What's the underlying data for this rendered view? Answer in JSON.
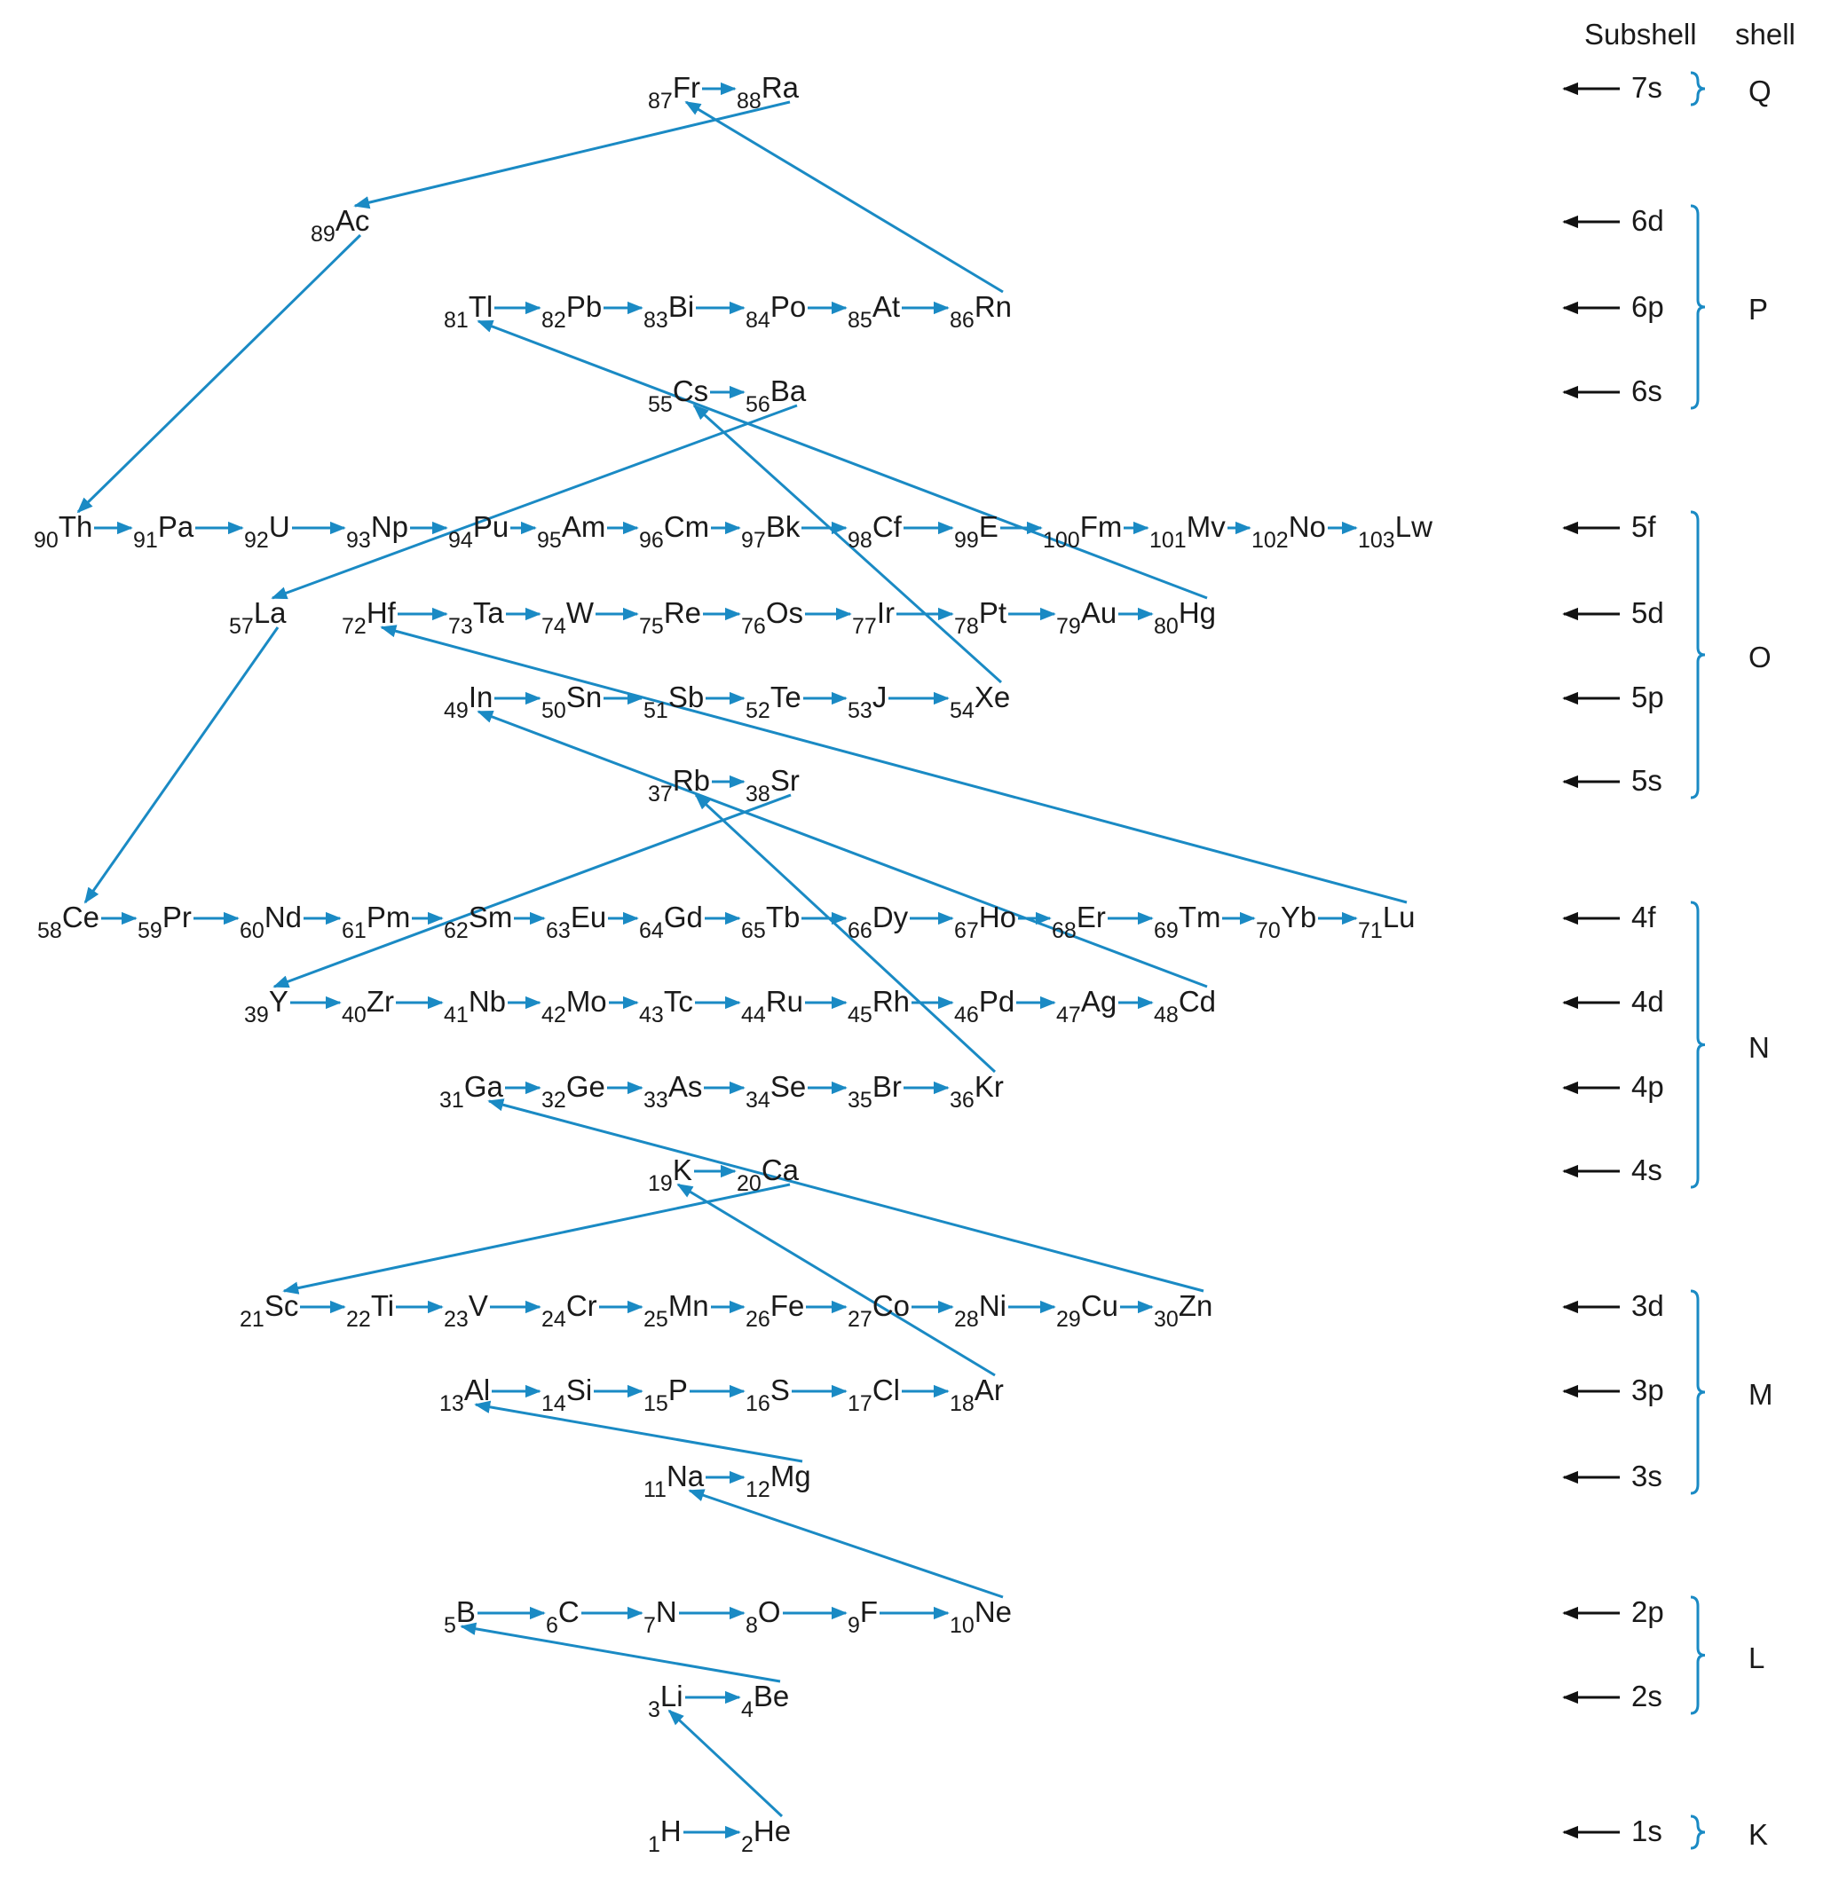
{
  "headers": {
    "subshell": "Subshell",
    "shell": "shell"
  },
  "colors": {
    "arrow": "#1a8ac4",
    "text": "#1a1a1a",
    "marker": "#111111"
  },
  "subshells": [
    {
      "label": "7s"
    },
    {
      "label": "6d"
    },
    {
      "label": "6p"
    },
    {
      "label": "6s"
    },
    {
      "label": "5f"
    },
    {
      "label": "5d"
    },
    {
      "label": "5p"
    },
    {
      "label": "5s"
    },
    {
      "label": "4f"
    },
    {
      "label": "4d"
    },
    {
      "label": "4p"
    },
    {
      "label": "4s"
    },
    {
      "label": "3d"
    },
    {
      "label": "3p"
    },
    {
      "label": "3s"
    },
    {
      "label": "2p"
    },
    {
      "label": "2s"
    },
    {
      "label": "1s"
    }
  ],
  "shells": [
    {
      "label": "Q"
    },
    {
      "label": "P"
    },
    {
      "label": "O"
    },
    {
      "label": "N"
    },
    {
      "label": "M"
    },
    {
      "label": "L"
    },
    {
      "label": "K"
    }
  ],
  "elements": [
    {
      "n": "1",
      "s": "H"
    },
    {
      "n": "2",
      "s": "He"
    },
    {
      "n": "3",
      "s": "Li"
    },
    {
      "n": "4",
      "s": "Be"
    },
    {
      "n": "5",
      "s": "B"
    },
    {
      "n": "6",
      "s": "C"
    },
    {
      "n": "7",
      "s": "N"
    },
    {
      "n": "8",
      "s": "O"
    },
    {
      "n": "9",
      "s": "F"
    },
    {
      "n": "10",
      "s": "Ne"
    },
    {
      "n": "11",
      "s": "Na"
    },
    {
      "n": "12",
      "s": "Mg"
    },
    {
      "n": "13",
      "s": "Al"
    },
    {
      "n": "14",
      "s": "Si"
    },
    {
      "n": "15",
      "s": "P"
    },
    {
      "n": "16",
      "s": "S"
    },
    {
      "n": "17",
      "s": "Cl"
    },
    {
      "n": "18",
      "s": "Ar"
    },
    {
      "n": "19",
      "s": "K"
    },
    {
      "n": "20",
      "s": "Ca"
    },
    {
      "n": "21",
      "s": "Sc"
    },
    {
      "n": "22",
      "s": "Ti"
    },
    {
      "n": "23",
      "s": "V"
    },
    {
      "n": "24",
      "s": "Cr"
    },
    {
      "n": "25",
      "s": "Mn"
    },
    {
      "n": "26",
      "s": "Fe"
    },
    {
      "n": "27",
      "s": "Co"
    },
    {
      "n": "28",
      "s": "Ni"
    },
    {
      "n": "29",
      "s": "Cu"
    },
    {
      "n": "30",
      "s": "Zn"
    },
    {
      "n": "31",
      "s": "Ga"
    },
    {
      "n": "32",
      "s": "Ge"
    },
    {
      "n": "33",
      "s": "As"
    },
    {
      "n": "34",
      "s": "Se"
    },
    {
      "n": "35",
      "s": "Br"
    },
    {
      "n": "36",
      "s": "Kr"
    },
    {
      "n": "37",
      "s": "Rb"
    },
    {
      "n": "38",
      "s": "Sr"
    },
    {
      "n": "39",
      "s": "Y"
    },
    {
      "n": "40",
      "s": "Zr"
    },
    {
      "n": "41",
      "s": "Nb"
    },
    {
      "n": "42",
      "s": "Mo"
    },
    {
      "n": "43",
      "s": "Tc"
    },
    {
      "n": "44",
      "s": "Ru"
    },
    {
      "n": "45",
      "s": "Rh"
    },
    {
      "n": "46",
      "s": "Pd"
    },
    {
      "n": "47",
      "s": "Ag"
    },
    {
      "n": "48",
      "s": "Cd"
    },
    {
      "n": "49",
      "s": "In"
    },
    {
      "n": "50",
      "s": "Sn"
    },
    {
      "n": "51",
      "s": "Sb"
    },
    {
      "n": "52",
      "s": "Te"
    },
    {
      "n": "53",
      "s": "J"
    },
    {
      "n": "54",
      "s": "Xe"
    },
    {
      "n": "55",
      "s": "Cs"
    },
    {
      "n": "56",
      "s": "Ba"
    },
    {
      "n": "57",
      "s": "La"
    },
    {
      "n": "58",
      "s": "Ce"
    },
    {
      "n": "59",
      "s": "Pr"
    },
    {
      "n": "60",
      "s": "Nd"
    },
    {
      "n": "61",
      "s": "Pm"
    },
    {
      "n": "62",
      "s": "Sm"
    },
    {
      "n": "63",
      "s": "Eu"
    },
    {
      "n": "64",
      "s": "Gd"
    },
    {
      "n": "65",
      "s": "Tb"
    },
    {
      "n": "66",
      "s": "Dy"
    },
    {
      "n": "67",
      "s": "Ho"
    },
    {
      "n": "68",
      "s": "Er"
    },
    {
      "n": "69",
      "s": "Tm"
    },
    {
      "n": "70",
      "s": "Yb"
    },
    {
      "n": "71",
      "s": "Lu"
    },
    {
      "n": "72",
      "s": "Hf"
    },
    {
      "n": "73",
      "s": "Ta"
    },
    {
      "n": "74",
      "s": "W"
    },
    {
      "n": "75",
      "s": "Re"
    },
    {
      "n": "76",
      "s": "Os"
    },
    {
      "n": "77",
      "s": "Ir"
    },
    {
      "n": "78",
      "s": "Pt"
    },
    {
      "n": "79",
      "s": "Au"
    },
    {
      "n": "80",
      "s": "Hg"
    },
    {
      "n": "81",
      "s": "Tl"
    },
    {
      "n": "82",
      "s": "Pb"
    },
    {
      "n": "83",
      "s": "Bi"
    },
    {
      "n": "84",
      "s": "Po"
    },
    {
      "n": "85",
      "s": "At"
    },
    {
      "n": "86",
      "s": "Rn"
    },
    {
      "n": "87",
      "s": "Fr"
    },
    {
      "n": "88",
      "s": "Ra"
    },
    {
      "n": "89",
      "s": "Ac"
    },
    {
      "n": "90",
      "s": "Th"
    },
    {
      "n": "91",
      "s": "Pa"
    },
    {
      "n": "92",
      "s": "U"
    },
    {
      "n": "93",
      "s": "Np"
    },
    {
      "n": "94",
      "s": "Pu"
    },
    {
      "n": "95",
      "s": "Am"
    },
    {
      "n": "96",
      "s": "Cm"
    },
    {
      "n": "97",
      "s": "Bk"
    },
    {
      "n": "98",
      "s": "Cf"
    },
    {
      "n": "99",
      "s": "E"
    },
    {
      "n": "100",
      "s": "Fm"
    },
    {
      "n": "101",
      "s": "Mv"
    },
    {
      "n": "102",
      "s": "No"
    },
    {
      "n": "103",
      "s": "Lw"
    }
  ]
}
